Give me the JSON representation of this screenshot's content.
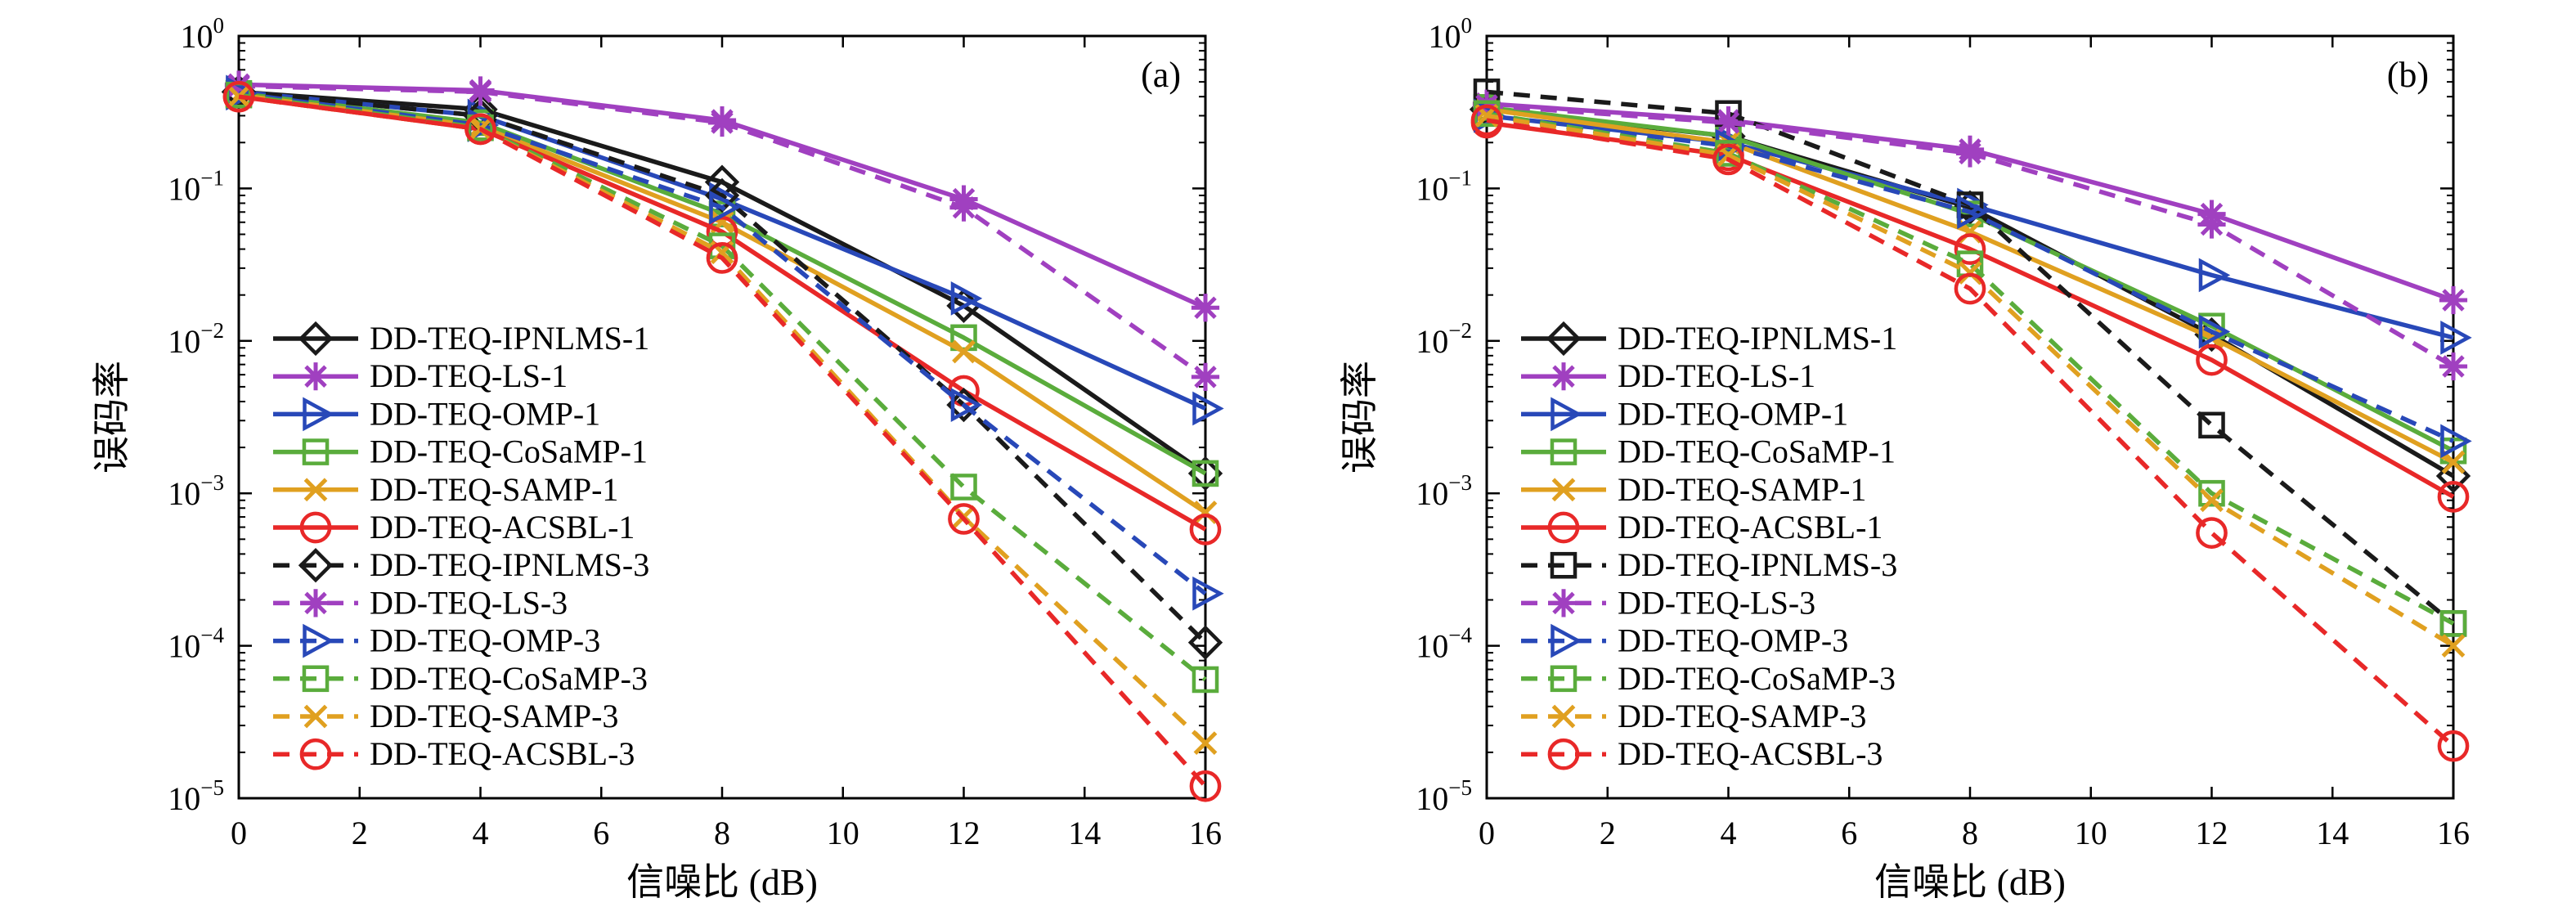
{
  "chart_data": [
    {
      "type": "line",
      "panel_label": "(a)",
      "xlabel": "信噪比 (dB)",
      "ylabel": "误码率",
      "x": [
        0,
        4,
        8,
        12,
        16
      ],
      "xlim": [
        0,
        16
      ],
      "xticks": [
        "0",
        "2",
        "4",
        "6",
        "8",
        "10",
        "12",
        "14",
        "16"
      ],
      "ylim": [
        1e-05,
        1
      ],
      "yscale": "log",
      "yticks": [
        {
          "base": "10",
          "exp": "0"
        },
        {
          "base": "10",
          "exp": "−1"
        },
        {
          "base": "10",
          "exp": "−2"
        },
        {
          "base": "10",
          "exp": "−3"
        },
        {
          "base": "10",
          "exp": "−4"
        },
        {
          "base": "10",
          "exp": "−5"
        }
      ],
      "grid": false,
      "legend_position": "lower-left",
      "series": [
        {
          "name": "DD-TEQ-IPNLMS-1",
          "color": "#1a1a1a",
          "dash": "solid",
          "marker": "diamond",
          "values": [
            0.43,
            0.33,
            0.11,
            0.017,
            0.00135
          ]
        },
        {
          "name": "DD-TEQ-LS-1",
          "color": "#a040c0",
          "dash": "solid",
          "marker": "asterisk",
          "values": [
            0.48,
            0.44,
            0.28,
            0.085,
            0.0165
          ]
        },
        {
          "name": "DD-TEQ-OMP-1",
          "color": "#2848b8",
          "dash": "solid",
          "marker": "triangle-right",
          "values": [
            0.43,
            0.3,
            0.085,
            0.019,
            0.0036
          ]
        },
        {
          "name": "DD-TEQ-CoSaMP-1",
          "color": "#5aac3c",
          "dash": "solid",
          "marker": "square",
          "values": [
            0.42,
            0.27,
            0.068,
            0.0105,
            0.00135
          ]
        },
        {
          "name": "DD-TEQ-SAMP-1",
          "color": "#e0a020",
          "dash": "solid",
          "marker": "x",
          "values": [
            0.41,
            0.255,
            0.06,
            0.0085,
            0.00075
          ]
        },
        {
          "name": "DD-TEQ-ACSBL-1",
          "color": "#e82828",
          "dash": "solid",
          "marker": "circle",
          "values": [
            0.4,
            0.245,
            0.052,
            0.0047,
            0.00058
          ]
        },
        {
          "name": "DD-TEQ-IPNLMS-3",
          "color": "#1a1a1a",
          "dash": "dashed",
          "marker": "diamond",
          "values": [
            0.43,
            0.3,
            0.09,
            0.0038,
            0.000105
          ]
        },
        {
          "name": "DD-TEQ-LS-3",
          "color": "#a040c0",
          "dash": "dashed",
          "marker": "asterisk",
          "values": [
            0.47,
            0.43,
            0.27,
            0.075,
            0.0058
          ]
        },
        {
          "name": "DD-TEQ-OMP-3",
          "color": "#2848b8",
          "dash": "dashed",
          "marker": "triangle-right",
          "values": [
            0.42,
            0.26,
            0.075,
            0.0038,
            0.00022
          ]
        },
        {
          "name": "DD-TEQ-CoSaMP-3",
          "color": "#5aac3c",
          "dash": "dashed",
          "marker": "square",
          "values": [
            0.41,
            0.25,
            0.042,
            0.0011,
            6e-05
          ]
        },
        {
          "name": "DD-TEQ-SAMP-3",
          "color": "#e0a020",
          "dash": "dashed",
          "marker": "x",
          "values": [
            0.4,
            0.245,
            0.038,
            0.0007,
            2.3e-05
          ]
        },
        {
          "name": "DD-TEQ-ACSBL-3",
          "color": "#e82828",
          "dash": "dashed",
          "marker": "circle",
          "values": [
            0.4,
            0.245,
            0.035,
            0.00068,
            1.2e-05
          ]
        }
      ]
    },
    {
      "type": "line",
      "panel_label": "(b)",
      "xlabel": "信噪比 (dB)",
      "ylabel": "误码率",
      "x": [
        0,
        4,
        8,
        12,
        16
      ],
      "xlim": [
        0,
        16
      ],
      "xticks": [
        "0",
        "2",
        "4",
        "6",
        "8",
        "10",
        "12",
        "14",
        "16"
      ],
      "ylim": [
        1e-05,
        1
      ],
      "yscale": "log",
      "yticks": [
        {
          "base": "10",
          "exp": "0"
        },
        {
          "base": "10",
          "exp": "−1"
        },
        {
          "base": "10",
          "exp": "−2"
        },
        {
          "base": "10",
          "exp": "−3"
        },
        {
          "base": "10",
          "exp": "−4"
        },
        {
          "base": "10",
          "exp": "−5"
        }
      ],
      "grid": false,
      "legend_position": "lower-left",
      "series": [
        {
          "name": "DD-TEQ-IPNLMS-1",
          "color": "#1a1a1a",
          "dash": "solid",
          "marker": "diamond",
          "values": [
            0.33,
            0.22,
            0.075,
            0.011,
            0.0013
          ]
        },
        {
          "name": "DD-TEQ-LS-1",
          "color": "#a040c0",
          "dash": "solid",
          "marker": "asterisk",
          "values": [
            0.36,
            0.28,
            0.18,
            0.068,
            0.0185
          ]
        },
        {
          "name": "DD-TEQ-OMP-1",
          "color": "#2848b8",
          "dash": "solid",
          "marker": "triangle-right",
          "values": [
            0.3,
            0.2,
            0.078,
            0.027,
            0.0105
          ]
        },
        {
          "name": "DD-TEQ-CoSaMP-1",
          "color": "#5aac3c",
          "dash": "solid",
          "marker": "square",
          "values": [
            0.34,
            0.22,
            0.068,
            0.0125,
            0.0019
          ]
        },
        {
          "name": "DD-TEQ-SAMP-1",
          "color": "#e0a020",
          "dash": "solid",
          "marker": "x",
          "values": [
            0.33,
            0.2,
            0.052,
            0.0105,
            0.0016
          ]
        },
        {
          "name": "DD-TEQ-ACSBL-1",
          "color": "#e82828",
          "dash": "solid",
          "marker": "circle",
          "values": [
            0.27,
            0.165,
            0.04,
            0.0075,
            0.00095
          ]
        },
        {
          "name": "DD-TEQ-IPNLMS-3",
          "color": "#1a1a1a",
          "dash": "dashed",
          "marker": "square",
          "values": [
            0.43,
            0.31,
            0.078,
            0.0028,
            0.00014
          ]
        },
        {
          "name": "DD-TEQ-LS-3",
          "color": "#a040c0",
          "dash": "dashed",
          "marker": "asterisk",
          "values": [
            0.35,
            0.27,
            0.17,
            0.058,
            0.0068
          ]
        },
        {
          "name": "DD-TEQ-OMP-3",
          "color": "#2848b8",
          "dash": "dashed",
          "marker": "triangle-right",
          "values": [
            0.3,
            0.19,
            0.07,
            0.0115,
            0.0022
          ]
        },
        {
          "name": "DD-TEQ-CoSaMP-3",
          "color": "#5aac3c",
          "dash": "dashed",
          "marker": "square",
          "values": [
            0.31,
            0.17,
            0.032,
            0.001,
            0.00014
          ]
        },
        {
          "name": "DD-TEQ-SAMP-3",
          "color": "#e0a020",
          "dash": "dashed",
          "marker": "x",
          "values": [
            0.3,
            0.165,
            0.028,
            0.0009,
            0.0001
          ]
        },
        {
          "name": "DD-TEQ-ACSBL-3",
          "color": "#e82828",
          "dash": "dashed",
          "marker": "circle",
          "values": [
            0.28,
            0.155,
            0.022,
            0.00055,
            2.2e-05
          ]
        }
      ]
    }
  ]
}
